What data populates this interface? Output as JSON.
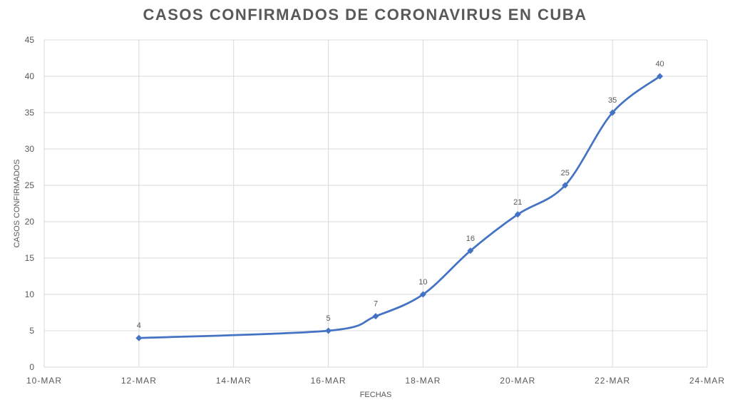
{
  "chart_data": {
    "type": "line",
    "title": "CASOS CONFIRMADOS DE CORONAVIRUS EN CUBA",
    "xlabel": "FECHAS",
    "ylabel": "CASOS CONFIRMADOS",
    "x_ticks": [
      "10-MAR",
      "12-MAR",
      "14-MAR",
      "16-MAR",
      "18-MAR",
      "20-MAR",
      "22-MAR",
      "24-MAR"
    ],
    "y_ticks": [
      0,
      5,
      10,
      15,
      20,
      25,
      30,
      35,
      40,
      45
    ],
    "xlim": [
      "2020-03-10",
      "2020-03-24"
    ],
    "ylim": [
      0,
      45
    ],
    "grid": true,
    "smooth": true,
    "marker": "diamond",
    "color": "#4472C4",
    "series": [
      {
        "x": [
          "2020-03-12",
          "2020-03-16",
          "2020-03-17",
          "2020-03-18",
          "2020-03-19",
          "2020-03-20",
          "2020-03-21",
          "2020-03-22",
          "2020-03-23"
        ],
        "values": [
          4,
          5,
          7,
          10,
          16,
          21,
          25,
          35,
          40
        ]
      }
    ]
  }
}
